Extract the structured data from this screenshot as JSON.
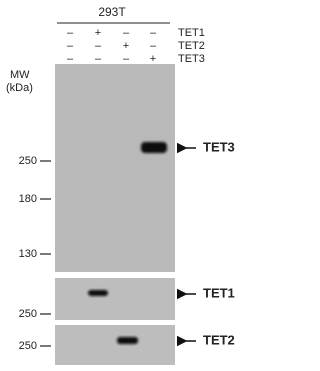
{
  "header": {
    "cell_line": "293T"
  },
  "treatments": [
    {
      "name": "TET1",
      "signs": [
        "–",
        "+",
        "–",
        "–"
      ]
    },
    {
      "name": "TET2",
      "signs": [
        "–",
        "–",
        "+",
        "–"
      ]
    },
    {
      "name": "TET3",
      "signs": [
        "–",
        "–",
        "–",
        "+"
      ]
    }
  ],
  "mw_label": [
    "MW",
    "(kDa)"
  ],
  "panels": [
    {
      "markers": [
        "250",
        "180",
        "130"
      ],
      "band_label": "TET3"
    },
    {
      "markers": [
        "250"
      ],
      "band_label": "TET1"
    },
    {
      "markers": [
        "250"
      ],
      "band_label": "TET2"
    }
  ]
}
